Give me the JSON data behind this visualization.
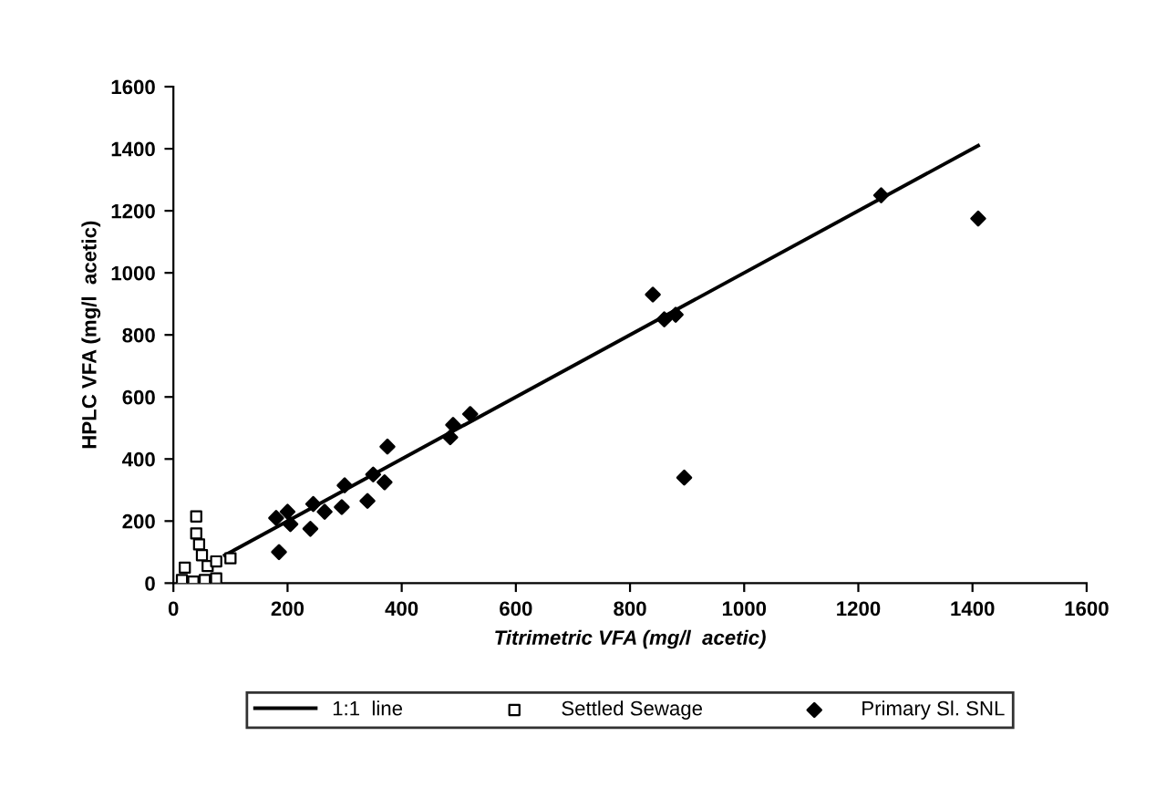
{
  "chart_data": {
    "type": "scatter",
    "xlabel": "Titrimetric VFA (mg/l  acetic)",
    "ylabel": "HPLC VFA (mg/l  acetic)",
    "xlim": [
      0,
      1600
    ],
    "ylim": [
      0,
      1600
    ],
    "xticks": [
      0,
      200,
      400,
      600,
      800,
      1000,
      1200,
      1400,
      1600
    ],
    "yticks": [
      0,
      200,
      400,
      600,
      800,
      1000,
      1200,
      1400,
      1600
    ],
    "grid": false,
    "legend": "bottom",
    "series": [
      {
        "name": "1:1  line",
        "type": "line",
        "color": "#000000",
        "marker": "none",
        "x": [
          90,
          1410
        ],
        "values": [
          90,
          1410
        ]
      },
      {
        "name": "Settled Sewage",
        "color": "#000000",
        "marker": "square",
        "x": [
          20,
          40,
          40,
          45,
          50,
          55,
          60,
          75,
          75,
          100,
          15,
          35
        ],
        "values": [
          50,
          215,
          160,
          125,
          90,
          10,
          55,
          70,
          15,
          80,
          10,
          5
        ]
      },
      {
        "name": "Primary Sl. SNL",
        "color": "#000000",
        "marker": "diamond",
        "x": [
          180,
          185,
          200,
          205,
          240,
          245,
          265,
          295,
          300,
          340,
          350,
          370,
          375,
          485,
          490,
          520,
          840,
          860,
          880,
          895,
          1240,
          1410
        ],
        "values": [
          210,
          100,
          230,
          190,
          175,
          255,
          230,
          245,
          315,
          265,
          350,
          325,
          440,
          470,
          510,
          545,
          930,
          850,
          865,
          340,
          1250,
          1175
        ]
      }
    ]
  }
}
